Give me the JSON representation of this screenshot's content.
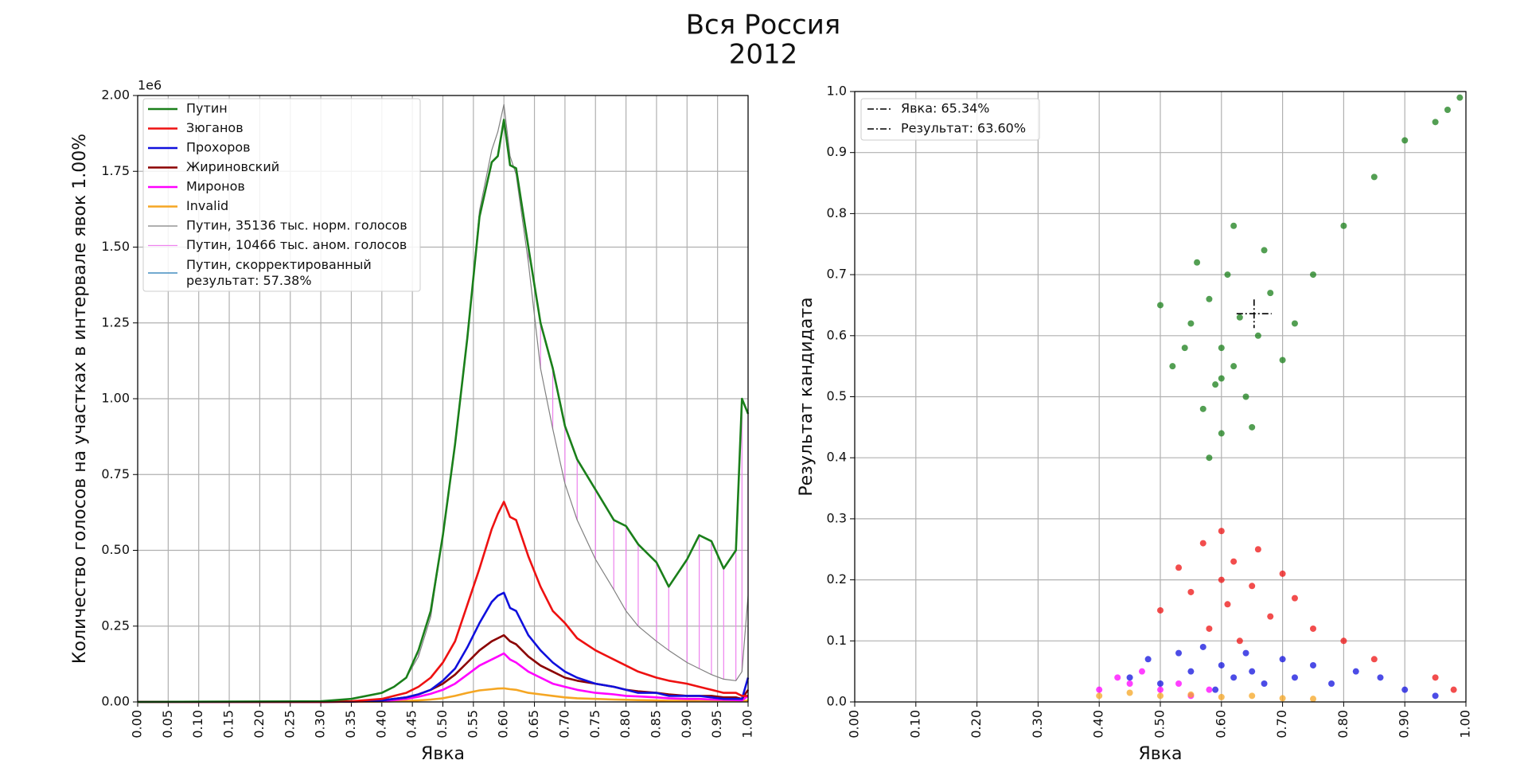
{
  "title": "Вся Россия",
  "subtitle": "2012",
  "chart_data": [
    {
      "type": "line",
      "xlabel": "Явка",
      "ylabel": "Количество голосов на участках в интервале явок 1.00%",
      "y_offset_label": "1e6",
      "grid": true,
      "legend": "upper left",
      "xlim": [
        0,
        1
      ],
      "ylim": [
        0,
        2
      ],
      "xticks": [
        {
          "value": 0,
          "label": "0.00"
        },
        {
          "value": 0.05,
          "label": "0.05"
        },
        {
          "value": 0.1,
          "label": "0.10"
        },
        {
          "value": 0.15,
          "label": "0.15"
        },
        {
          "value": 0.2,
          "label": "0.20"
        },
        {
          "value": 0.25,
          "label": "0.25"
        },
        {
          "value": 0.3,
          "label": "0.30"
        },
        {
          "value": 0.35,
          "label": "0.35"
        },
        {
          "value": 0.4,
          "label": "0.40"
        },
        {
          "value": 0.45,
          "label": "0.45"
        },
        {
          "value": 0.5,
          "label": "0.50"
        },
        {
          "value": 0.55,
          "label": "0.55"
        },
        {
          "value": 0.6,
          "label": "0.60"
        },
        {
          "value": 0.65,
          "label": "0.65"
        },
        {
          "value": 0.7,
          "label": "0.70"
        },
        {
          "value": 0.75,
          "label": "0.75"
        },
        {
          "value": 0.8,
          "label": "0.80"
        },
        {
          "value": 0.85,
          "label": "0.85"
        },
        {
          "value": 0.9,
          "label": "0.90"
        },
        {
          "value": 0.95,
          "label": "0.95"
        },
        {
          "value": 1,
          "label": "1.00"
        }
      ],
      "yticks": [
        {
          "value": 0,
          "label": "0.00"
        },
        {
          "value": 0.25,
          "label": "0.25"
        },
        {
          "value": 0.5,
          "label": "0.50"
        },
        {
          "value": 0.75,
          "label": "0.75"
        },
        {
          "value": 1,
          "label": "1.00"
        },
        {
          "value": 1.25,
          "label": "1.25"
        },
        {
          "value": 1.5,
          "label": "1.50"
        },
        {
          "value": 1.75,
          "label": "1.75"
        },
        {
          "value": 2,
          "label": "2.00"
        }
      ],
      "x": [
        0,
        0.3,
        0.35,
        0.4,
        0.42,
        0.44,
        0.46,
        0.48,
        0.5,
        0.52,
        0.54,
        0.56,
        0.58,
        0.59,
        0.6,
        0.61,
        0.62,
        0.64,
        0.66,
        0.68,
        0.7,
        0.72,
        0.75,
        0.78,
        0.8,
        0.82,
        0.85,
        0.87,
        0.9,
        0.92,
        0.94,
        0.96,
        0.98,
        0.99,
        1.0
      ],
      "series": [
        {
          "name": "Путин",
          "color": "#1a7f1a",
          "values": [
            0,
            0.002,
            0.01,
            0.03,
            0.05,
            0.08,
            0.17,
            0.3,
            0.55,
            0.85,
            1.2,
            1.6,
            1.78,
            1.8,
            1.92,
            1.77,
            1.76,
            1.5,
            1.25,
            1.1,
            0.91,
            0.8,
            0.7,
            0.6,
            0.58,
            0.52,
            0.46,
            0.38,
            0.47,
            0.55,
            0.53,
            0.44,
            0.5,
            1.0,
            0.95
          ]
        },
        {
          "name": "Зюганов",
          "color": "#ee1111",
          "values": [
            0,
            0,
            0.002,
            0.01,
            0.02,
            0.03,
            0.05,
            0.08,
            0.13,
            0.2,
            0.32,
            0.44,
            0.57,
            0.62,
            0.66,
            0.61,
            0.6,
            0.48,
            0.38,
            0.3,
            0.26,
            0.21,
            0.17,
            0.14,
            0.12,
            0.1,
            0.08,
            0.07,
            0.06,
            0.05,
            0.04,
            0.03,
            0.03,
            0.02,
            0.02
          ]
        },
        {
          "name": "Прохоров",
          "color": "#1010dd",
          "values": [
            0,
            0,
            0.001,
            0.005,
            0.01,
            0.015,
            0.025,
            0.04,
            0.07,
            0.11,
            0.18,
            0.26,
            0.33,
            0.35,
            0.36,
            0.31,
            0.3,
            0.22,
            0.17,
            0.13,
            0.1,
            0.08,
            0.06,
            0.05,
            0.04,
            0.03,
            0.03,
            0.02,
            0.02,
            0.02,
            0.015,
            0.01,
            0.01,
            0.01,
            0.08
          ]
        },
        {
          "name": "Жириновский",
          "color": "#8b0000",
          "values": [
            0,
            0,
            0.001,
            0.005,
            0.01,
            0.015,
            0.025,
            0.04,
            0.06,
            0.09,
            0.13,
            0.17,
            0.2,
            0.21,
            0.22,
            0.2,
            0.19,
            0.15,
            0.12,
            0.1,
            0.08,
            0.07,
            0.06,
            0.05,
            0.04,
            0.035,
            0.03,
            0.025,
            0.02,
            0.02,
            0.02,
            0.015,
            0.015,
            0.01,
            0.04
          ]
        },
        {
          "name": "Миронов",
          "color": "#ff00ff",
          "values": [
            0,
            0,
            0.001,
            0.003,
            0.006,
            0.01,
            0.017,
            0.027,
            0.04,
            0.06,
            0.09,
            0.12,
            0.14,
            0.15,
            0.16,
            0.14,
            0.13,
            0.1,
            0.08,
            0.06,
            0.05,
            0.04,
            0.03,
            0.025,
            0.02,
            0.018,
            0.015,
            0.012,
            0.01,
            0.01,
            0.008,
            0.007,
            0.006,
            0.005,
            0.02
          ]
        },
        {
          "name": "Invalid",
          "color": "#f5a623",
          "values": [
            0,
            0,
            0,
            0.001,
            0.002,
            0.003,
            0.005,
            0.008,
            0.012,
            0.02,
            0.03,
            0.038,
            0.042,
            0.044,
            0.045,
            0.042,
            0.04,
            0.03,
            0.025,
            0.02,
            0.015,
            0.012,
            0.01,
            0.008,
            0.007,
            0.006,
            0.005,
            0.004,
            0.004,
            0.003,
            0.003,
            0.003,
            0.002,
            0.002,
            0.005
          ]
        },
        {
          "name": "Путин, 35136 тыс. норм. голосов",
          "color": "#808080",
          "values": [
            0,
            0.002,
            0.01,
            0.03,
            0.05,
            0.08,
            0.15,
            0.28,
            0.55,
            0.85,
            1.2,
            1.62,
            1.82,
            1.88,
            1.97,
            1.8,
            1.74,
            1.45,
            1.1,
            0.9,
            0.72,
            0.6,
            0.47,
            0.37,
            0.3,
            0.25,
            0.2,
            0.17,
            0.13,
            0.11,
            0.09,
            0.075,
            0.07,
            0.1,
            0.35
          ]
        },
        {
          "name": "Путин, 10466 тыс. аном. голосов",
          "color": "#ee82ee"
        },
        {
          "name": "Путин, скорректированный результат: 57.38%",
          "color": "#1f77b4"
        }
      ]
    },
    {
      "type": "scatter",
      "xlabel": "Явка",
      "ylabel": "Результат кандидата",
      "grid": true,
      "legend": "upper left",
      "xlim": [
        0,
        1
      ],
      "ylim": [
        0,
        1
      ],
      "xticks": [
        {
          "value": 0,
          "label": "0.00"
        },
        {
          "value": 0.1,
          "label": "0.10"
        },
        {
          "value": 0.2,
          "label": "0.20"
        },
        {
          "value": 0.3,
          "label": "0.30"
        },
        {
          "value": 0.4,
          "label": "0.40"
        },
        {
          "value": 0.5,
          "label": "0.50"
        },
        {
          "value": 0.6,
          "label": "0.60"
        },
        {
          "value": 0.7,
          "label": "0.70"
        },
        {
          "value": 0.8,
          "label": "0.80"
        },
        {
          "value": 0.9,
          "label": "0.90"
        },
        {
          "value": 1,
          "label": "1.00"
        }
      ],
      "yticks": [
        {
          "value": 0,
          "label": "0.0"
        },
        {
          "value": 0.1,
          "label": "0.1"
        },
        {
          "value": 0.2,
          "label": "0.2"
        },
        {
          "value": 0.3,
          "label": "0.3"
        },
        {
          "value": 0.4,
          "label": "0.4"
        },
        {
          "value": 0.5,
          "label": "0.5"
        },
        {
          "value": 0.6,
          "label": "0.6"
        },
        {
          "value": 0.7,
          "label": "0.7"
        },
        {
          "value": 0.8,
          "label": "0.8"
        },
        {
          "value": 0.9,
          "label": "0.9"
        },
        {
          "value": 1,
          "label": "1.0"
        }
      ],
      "series": [
        {
          "color": "#1a7f1a",
          "x": [
            0.52,
            0.55,
            0.57,
            0.58,
            0.59,
            0.6,
            0.6,
            0.61,
            0.62,
            0.63,
            0.64,
            0.66,
            0.68,
            0.7,
            0.56,
            0.58,
            0.62,
            0.65,
            0.54,
            0.6,
            0.67,
            0.72,
            0.75,
            0.8,
            0.85,
            0.9,
            0.95,
            0.97,
            0.99,
            0.5
          ],
          "values": [
            0.55,
            0.62,
            0.48,
            0.66,
            0.52,
            0.58,
            0.44,
            0.7,
            0.55,
            0.63,
            0.5,
            0.6,
            0.67,
            0.56,
            0.72,
            0.4,
            0.78,
            0.45,
            0.58,
            0.53,
            0.74,
            0.62,
            0.7,
            0.78,
            0.86,
            0.92,
            0.95,
            0.97,
            0.99,
            0.65
          ]
        },
        {
          "color": "#ee1111",
          "x": [
            0.5,
            0.53,
            0.55,
            0.57,
            0.58,
            0.6,
            0.6,
            0.61,
            0.62,
            0.63,
            0.65,
            0.66,
            0.68,
            0.7,
            0.72,
            0.75,
            0.8,
            0.85,
            0.95,
            0.98
          ],
          "values": [
            0.15,
            0.22,
            0.18,
            0.26,
            0.12,
            0.2,
            0.28,
            0.16,
            0.23,
            0.1,
            0.19,
            0.25,
            0.14,
            0.21,
            0.17,
            0.12,
            0.1,
            0.07,
            0.04,
            0.02
          ]
        },
        {
          "color": "#1010dd",
          "x": [
            0.45,
            0.48,
            0.5,
            0.53,
            0.55,
            0.57,
            0.59,
            0.6,
            0.62,
            0.64,
            0.65,
            0.67,
            0.7,
            0.72,
            0.75,
            0.78,
            0.82,
            0.86,
            0.9,
            0.95
          ],
          "values": [
            0.04,
            0.07,
            0.03,
            0.08,
            0.05,
            0.09,
            0.02,
            0.06,
            0.04,
            0.08,
            0.05,
            0.03,
            0.07,
            0.04,
            0.06,
            0.03,
            0.05,
            0.04,
            0.02,
            0.01
          ]
        },
        {
          "color": "#ff00ff",
          "x": [
            0.4,
            0.43,
            0.45,
            0.47,
            0.5,
            0.53,
            0.55,
            0.58
          ],
          "values": [
            0.02,
            0.04,
            0.03,
            0.05,
            0.02,
            0.03,
            0.01,
            0.02
          ]
        },
        {
          "color": "#f5a623",
          "x": [
            0.4,
            0.45,
            0.5,
            0.55,
            0.6,
            0.65,
            0.7,
            0.75
          ],
          "values": [
            0.01,
            0.015,
            0.01,
            0.012,
            0.008,
            0.01,
            0.006,
            0.005
          ]
        }
      ],
      "marker": {
        "x": 0.6534,
        "y": 0.636
      },
      "legend_entries": [
        "Явка: 65.34%",
        "Результат: 63.60%"
      ]
    }
  ]
}
